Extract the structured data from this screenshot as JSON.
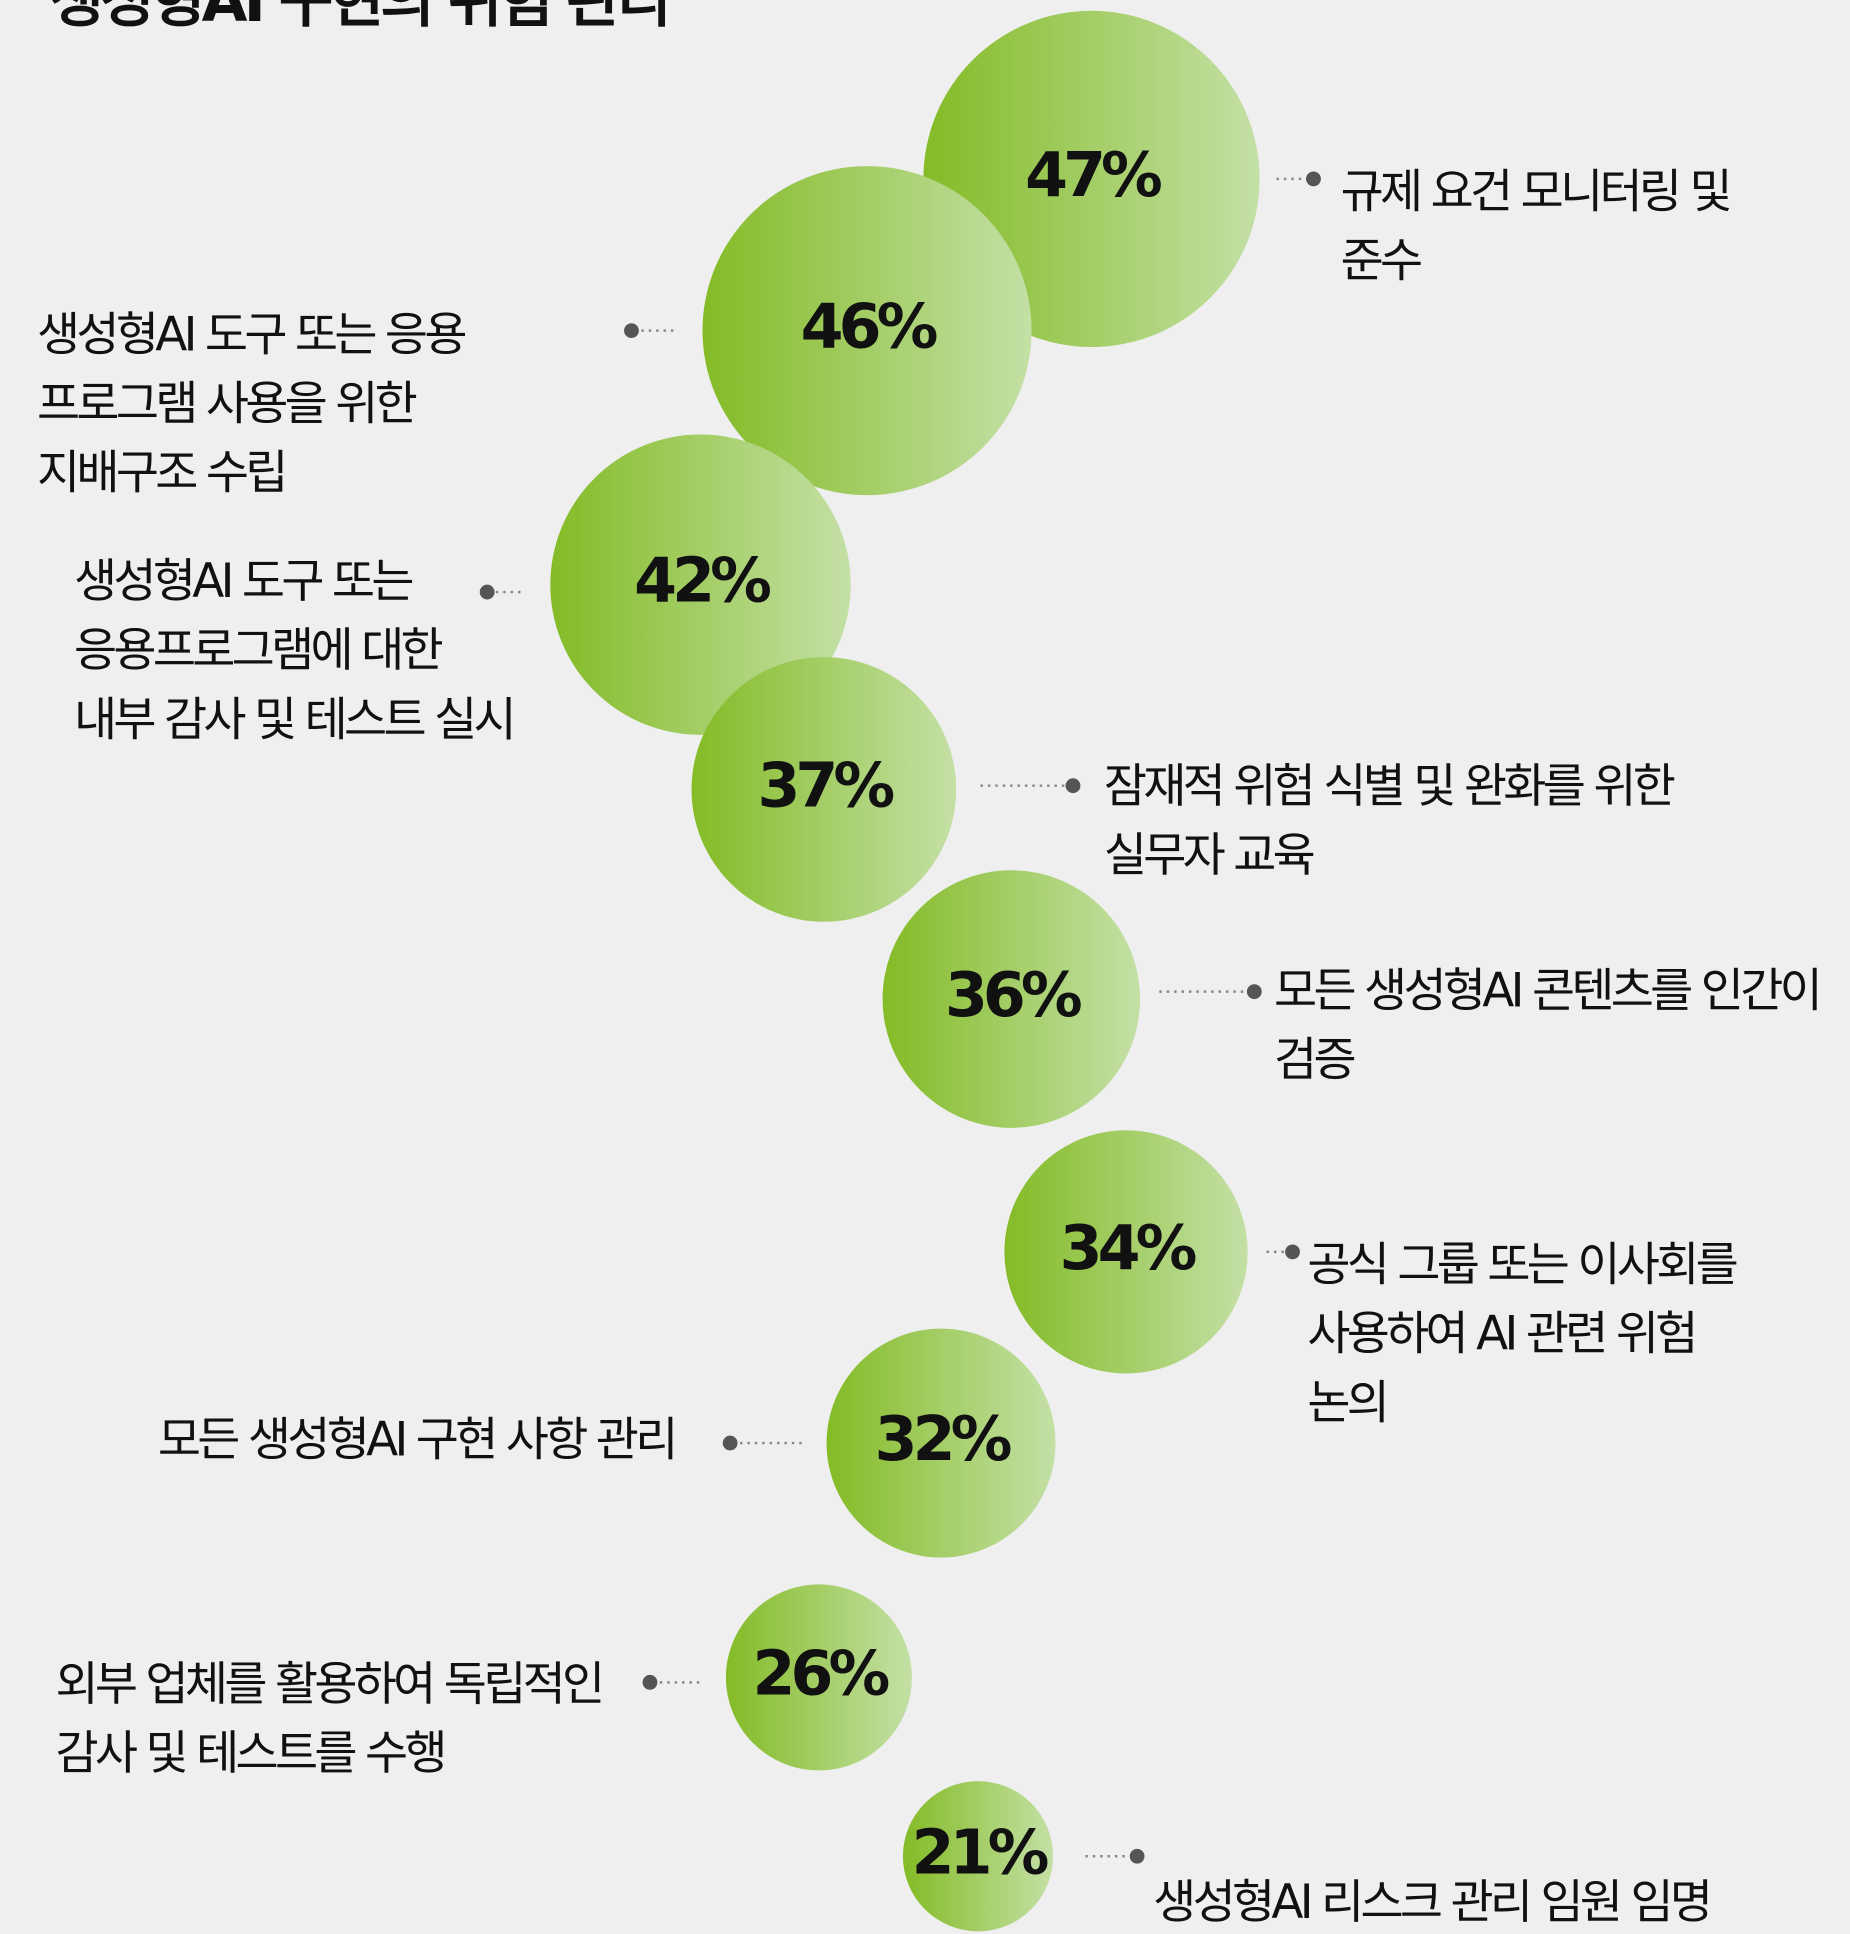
{
  "chart_data": {
    "type": "bubble",
    "title": "생성형AI 구현의 위험 관리",
    "categories": [
      [
        "규제 요건 모니터링 및",
        "준수"
      ],
      [
        "생성형AI 도구 또는 응용",
        "프로그램 사용을 위한",
        "지배구조 수립"
      ],
      [
        "생성형AI 도구 또는",
        "응용프로그램에 대한",
        "내부 감사 및 테스트 실시"
      ],
      [
        "잠재적 위험 식별 및 완화를 위한",
        "실무자 교육"
      ],
      [
        "모든 생성형AI 콘텐츠를 인간이",
        "검증"
      ],
      [
        "공식 그룹 또는 이사회를",
        "사용하여 AI 관련 위험",
        "논의"
      ],
      [
        "모든 생성형AI 구현 사항 관리"
      ],
      [
        "외부 업체를 활용하여 독립적인",
        "감사 및 테스트를 수행"
      ],
      [
        "생성형AI 리스크 관리 임원 임명"
      ]
    ],
    "values": [
      47,
      46,
      42,
      37,
      36,
      34,
      32,
      26,
      21
    ],
    "value_labels": [
      "47%",
      "46%",
      "42%",
      "37%",
      "36%",
      "34%",
      "32%",
      "26%",
      "21%"
    ],
    "colors": [
      "#84bb26",
      "#c4e0a6"
    ]
  }
}
